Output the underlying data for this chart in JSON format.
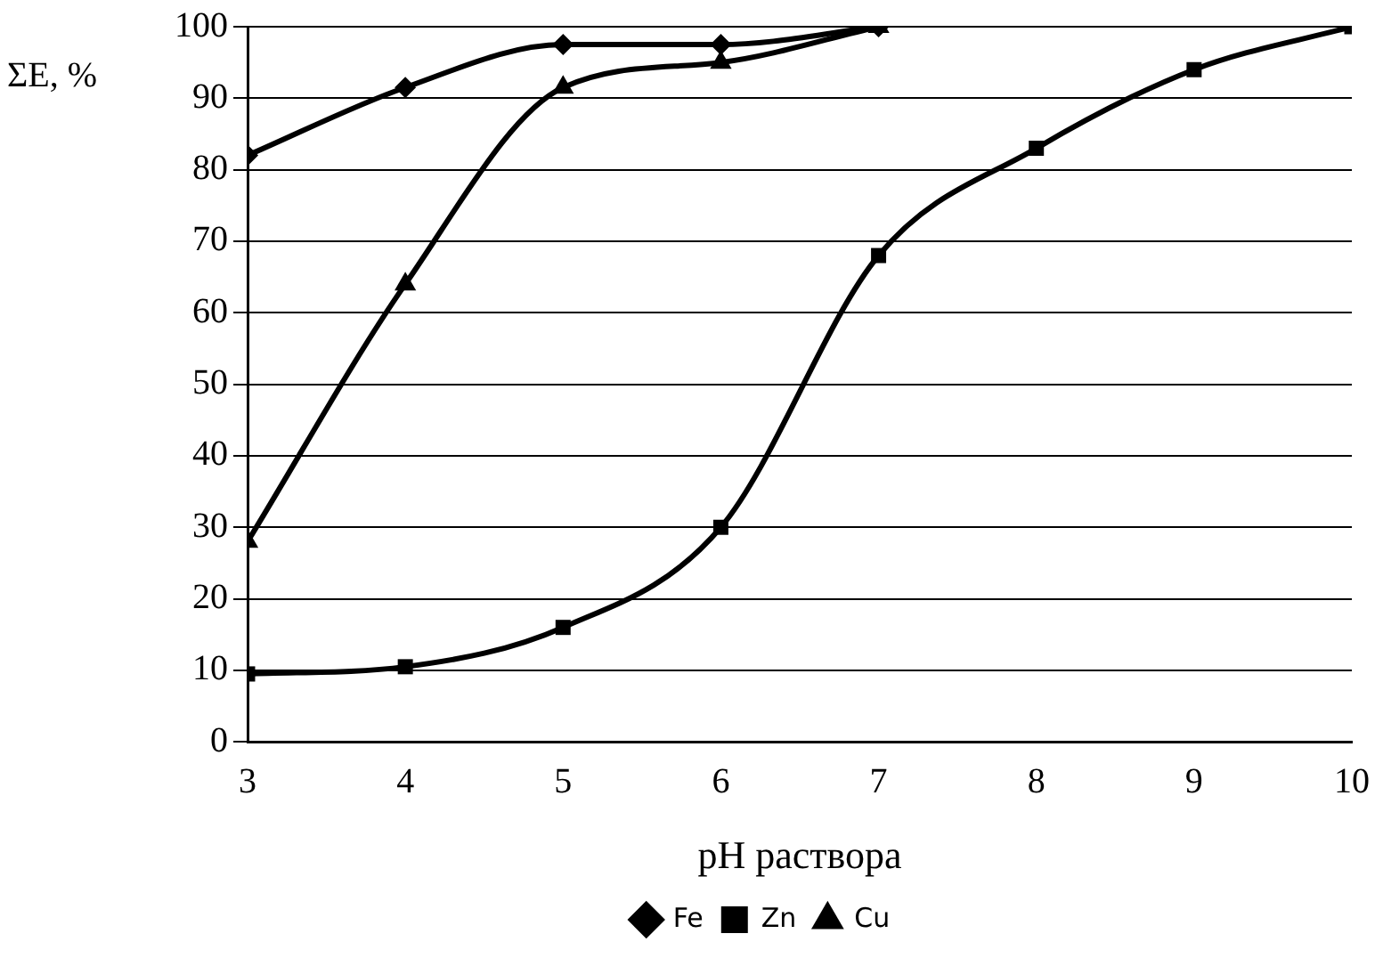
{
  "chart_data": {
    "type": "line",
    "xlabel": "pH раствора",
    "ylabel": "ΣE, %",
    "x": [
      3,
      4,
      5,
      6,
      7,
      8,
      9,
      10
    ],
    "series": [
      {
        "name": "Fe",
        "color": "#000000",
        "marker": "diamond",
        "values": [
          82,
          91.5,
          97.5,
          97.5,
          100,
          null,
          null,
          null
        ]
      },
      {
        "name": "Zn",
        "color": "#000000",
        "marker": "square",
        "values": [
          9.5,
          10.5,
          16,
          30,
          68,
          83,
          94,
          100
        ]
      },
      {
        "name": "Cu",
        "color": "#000000",
        "marker": "triangle",
        "values": [
          28,
          64,
          91.5,
          95,
          100,
          null,
          null,
          null
        ]
      }
    ],
    "xlim": [
      3,
      10
    ],
    "xticks": [
      3,
      4,
      5,
      6,
      7,
      8,
      9,
      10
    ],
    "ylim": [
      0,
      100
    ],
    "yticks": [
      0,
      10,
      20,
      30,
      40,
      50,
      60,
      70,
      80,
      90,
      100
    ],
    "grid": "y",
    "legend": "bottom",
    "line_style": "solid"
  }
}
